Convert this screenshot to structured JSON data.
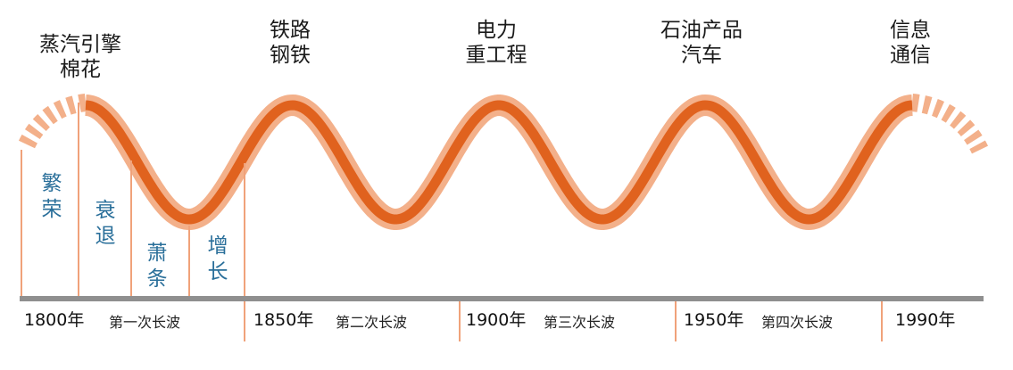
{
  "technologies": [
    {
      "line1": "蒸汽引擎",
      "line2": "棉花"
    },
    {
      "line1": "铁路",
      "line2": "钢铁"
    },
    {
      "line1": "电力",
      "line2": "重工程"
    },
    {
      "line1": "石油产品",
      "line2": "汽车"
    },
    {
      "line1": "信息",
      "line2": "通信"
    }
  ],
  "phases": [
    {
      "label": "繁荣"
    },
    {
      "label": "衰退"
    },
    {
      "label": "萧条"
    },
    {
      "label": "增长"
    }
  ],
  "years": [
    "1800年",
    "1850年",
    "1900年",
    "1950年",
    "1990年"
  ],
  "waves": [
    "第一次长波",
    "第二次长波",
    "第三次长波",
    "第四次长波"
  ],
  "colors": {
    "wave_dark": "#e0621e",
    "wave_light": "#f3b08a",
    "phase_line": "#f0a27a",
    "axis": "#8f8f8f",
    "phase_text": "#2a6f9a"
  }
}
